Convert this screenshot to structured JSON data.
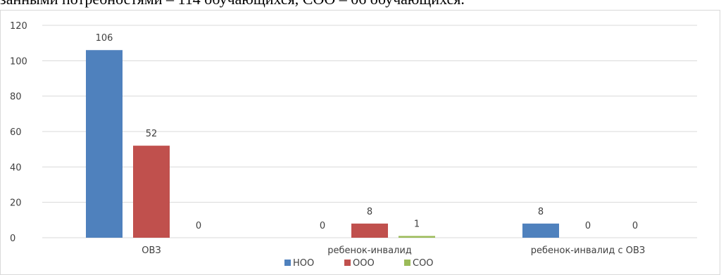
{
  "document": {
    "partial_line": "занными потребностями – 114 обучающихся, СОО – 06 обучающихся."
  },
  "chart_data": {
    "type": "bar",
    "categories": [
      "ОВЗ",
      "ребенок-инвалид",
      "ребенок-инвалид с ОВЗ"
    ],
    "series": [
      {
        "name": "НОО",
        "color": "#4f81bd",
        "values": [
          106,
          0,
          8
        ]
      },
      {
        "name": "ООО",
        "color": "#c0504d",
        "values": [
          52,
          8,
          0
        ]
      },
      {
        "name": "СОО",
        "color": "#9bbb59",
        "values": [
          0,
          1,
          0
        ]
      }
    ],
    "yticks": [
      "0",
      "20",
      "40",
      "60",
      "80",
      "100",
      "120"
    ],
    "ylim": [
      0,
      120
    ],
    "grid": true,
    "legend": "bottom"
  }
}
